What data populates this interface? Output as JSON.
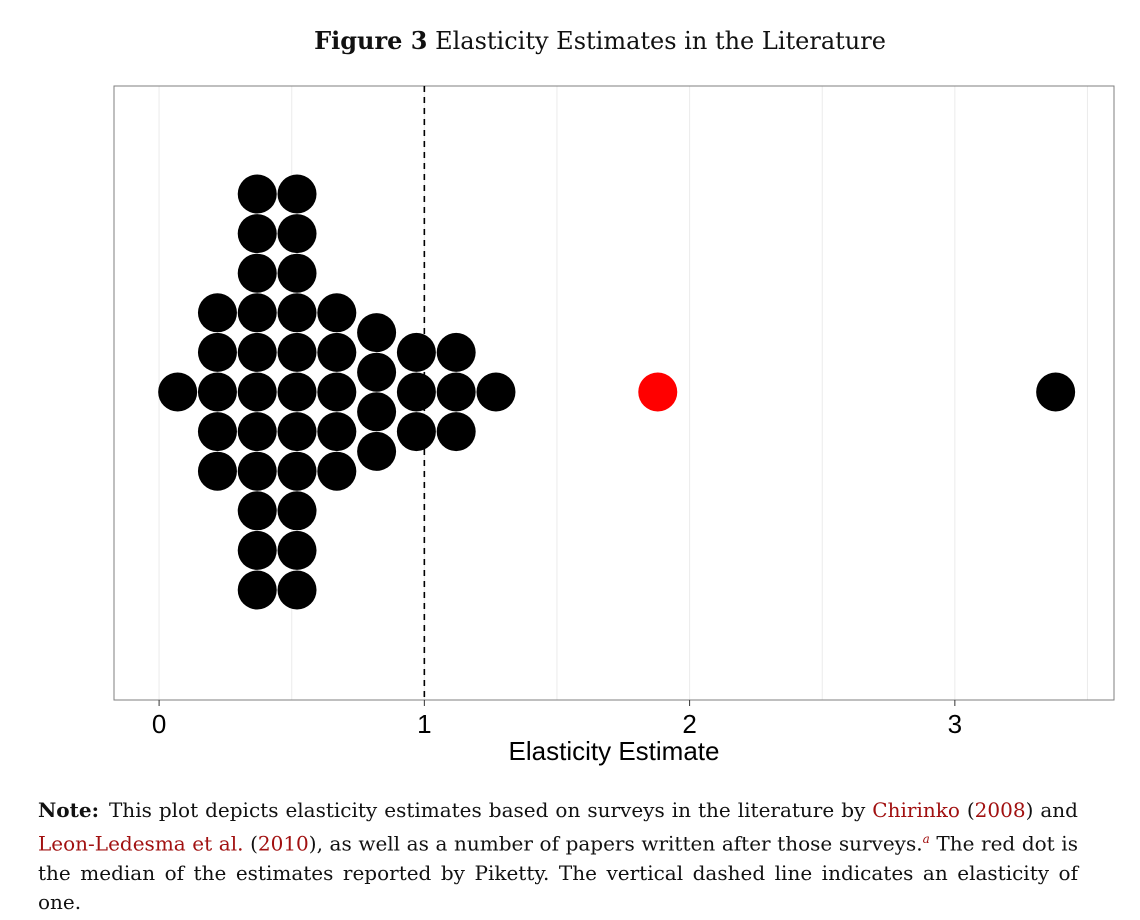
{
  "figure": {
    "label": "Figure 3",
    "title": "Elasticity Estimates in the Literature"
  },
  "colors": {
    "dot": "#000000",
    "median_dot": "#ff0000",
    "reference_line": "#000000",
    "grid": "#ebebeb",
    "link": "#a11010"
  },
  "chart_data": {
    "type": "scatter",
    "subtype": "dot plot (beeswarm)",
    "title": "Figure 3 Elasticity Estimates in the Literature",
    "xlabel": "Elasticity Estimate",
    "ylabel": "",
    "xlim": [
      -0.17,
      3.6
    ],
    "xticks": [
      0,
      1,
      2,
      3
    ],
    "xtick_labels": [
      "0",
      "1",
      "2",
      "3"
    ],
    "grid": "vertical major and minor lines",
    "reference_line": {
      "x": 1,
      "style": "dashed"
    },
    "median_point": {
      "x": 1.88,
      "stack_level": 0
    },
    "columns": [
      {
        "x": 0.07,
        "count": 1
      },
      {
        "x": 0.22,
        "count": 5
      },
      {
        "x": 0.37,
        "count": 11
      },
      {
        "x": 0.52,
        "count": 11
      },
      {
        "x": 0.67,
        "count": 5
      },
      {
        "x": 0.82,
        "count": 4
      },
      {
        "x": 0.97,
        "count": 3
      },
      {
        "x": 1.12,
        "count": 3
      },
      {
        "x": 1.27,
        "count": 1
      },
      {
        "x": 3.38,
        "count": 1
      }
    ]
  },
  "note": {
    "label": "Note:",
    "t1": "This plot depicts elasticity estimates based on surveys in the literature by ",
    "ref1_name": "Chirinko",
    "t2": " (",
    "ref1_year": "2008",
    "t3": ") and ",
    "ref2_name": "Leon-Ledesma et al.",
    "t4": " (",
    "ref2_year": "2010",
    "t5": "), as well as a number of papers written after those surveys.",
    "footnote_mark": "a",
    "t6": " The red dot is the median of the estimates reported by Piketty. The vertical dashed line indicates an elasticity of one."
  }
}
